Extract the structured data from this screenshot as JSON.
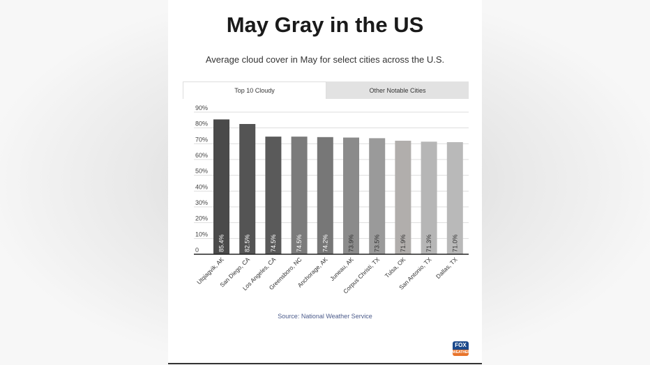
{
  "title": "May Gray in the US",
  "subtitle": "Average cloud cover in May for select cities across the U.S.",
  "tabs": [
    {
      "label": "Top 10 Cloudy",
      "active": true
    },
    {
      "label": "Other Notable Cities",
      "active": false
    }
  ],
  "source": "Source: National Weather Service",
  "logo": {
    "text": "FOX",
    "sub": "WEATHER"
  },
  "chart_data": {
    "type": "bar",
    "categories": [
      "Utqiagvik, AK",
      "San Diego, CA",
      "Los Angeles, CA",
      "Greensboro, NC",
      "Anchorage, AK",
      "Juneau, AK",
      "Corpus Christi, TX",
      "Tulsa, OK",
      "San Antonio, TX",
      "Dallas, TX"
    ],
    "values": [
      85.4,
      82.5,
      74.5,
      74.5,
      74.2,
      73.9,
      73.5,
      71.9,
      71.3,
      71.0
    ],
    "data_labels": [
      "85.4%",
      "82.5%",
      "74.5%",
      "74.5%",
      "74.2%",
      "73.9%",
      "73.5%",
      "71.9%",
      "71.3%",
      "71.0%"
    ],
    "colors": [
      "#4a4a4a",
      "#545454",
      "#5a5a5a",
      "#7b7b7b",
      "#777777",
      "#8b8b8b",
      "#9a9a9a",
      "#b1aeac",
      "#b6b6b6",
      "#b9b9b9"
    ],
    "yticks": [
      "0",
      "10%",
      "20%",
      "30%",
      "40%",
      "50%",
      "60%",
      "70%",
      "80%",
      "90%"
    ],
    "ylim": [
      0,
      90
    ],
    "grid": true
  }
}
